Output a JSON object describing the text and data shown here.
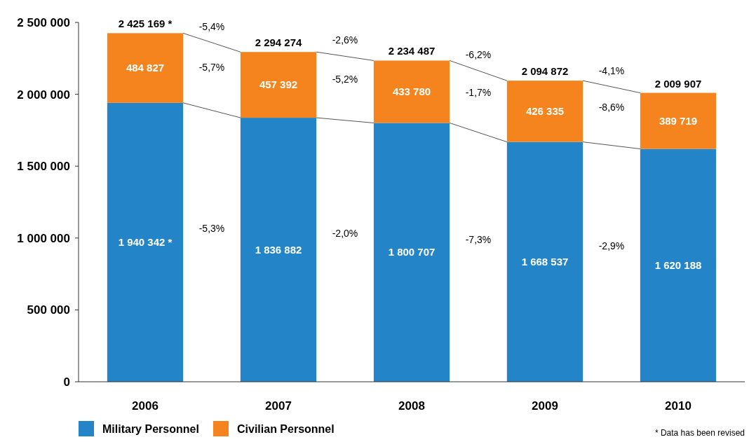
{
  "chart_data": {
    "type": "bar",
    "stacked": true,
    "categories": [
      "2006",
      "2007",
      "2008",
      "2009",
      "2010"
    ],
    "series": [
      {
        "name": "Military Personnel",
        "color": "#2385c8",
        "values": [
          1940342,
          1836882,
          1800707,
          1668537,
          1620188
        ],
        "value_labels": [
          "1 940 342 *",
          "1 836 882",
          "1 800 707",
          "1 668 537",
          "1 620 188"
        ]
      },
      {
        "name": "Civilian Personnel",
        "color": "#f5841f",
        "values": [
          484827,
          457392,
          433780,
          426335,
          389719
        ],
        "value_labels": [
          "484 827",
          "457 392",
          "433 780",
          "426 335",
          "389 719"
        ]
      }
    ],
    "totals": [
      "2 425 169 *",
      "2 294 274",
      "2 234 487",
      "2 094 872",
      "2 009 907"
    ],
    "ylim": [
      0,
      2500000
    ],
    "yticks": [
      0,
      {
        "value": 500000,
        "label": "500 000"
      },
      {
        "value": 1000000,
        "label": "1 000 000"
      },
      {
        "value": 1500000,
        "label": "1 500 000"
      },
      {
        "value": 2000000,
        "label": "2 000 000"
      },
      {
        "value": 2500000,
        "label": "2 500 000"
      }
    ],
    "annotations": [
      "-5,4%",
      "-5,7%",
      "-5,3%",
      "-2,6%",
      "-5,2%",
      "-2,0%",
      "-6,2%",
      "-1,7%",
      "-7,3%",
      "-4,1%",
      "-8,6%",
      "-2,9%",
      "* Data has been revised"
    ],
    "legend": "bottom left",
    "grid": false
  }
}
